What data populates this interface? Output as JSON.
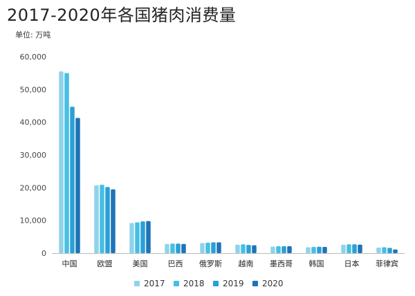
{
  "chart_data": {
    "type": "bar",
    "title": "2017-2020年各国猪肉消费量",
    "unit_label": "单位: 万吨",
    "categories": [
      "中国",
      "欧盟",
      "美国",
      "巴西",
      "俄罗斯",
      "越南",
      "墨西哥",
      "韩国",
      "日本",
      "菲律宾"
    ],
    "series": [
      {
        "name": "2017",
        "color": "#8fd3ea",
        "values": [
          55500,
          20700,
          9200,
          2800,
          3100,
          2600,
          2000,
          1800,
          2600,
          1700
        ]
      },
      {
        "name": "2018",
        "color": "#47bfe4",
        "values": [
          55000,
          20900,
          9400,
          2900,
          3200,
          2700,
          2100,
          1900,
          2700,
          1800
        ]
      },
      {
        "name": "2019",
        "color": "#2aa0d6",
        "values": [
          44700,
          20200,
          9700,
          2900,
          3300,
          2500,
          2100,
          1950,
          2700,
          1600
        ]
      },
      {
        "name": "2020",
        "color": "#1f73b7",
        "values": [
          41300,
          19500,
          9800,
          2800,
          3300,
          2400,
          2100,
          1900,
          2600,
          1100
        ]
      }
    ],
    "ylim": [
      0,
      60000
    ],
    "yticks": [
      "0",
      "10,000",
      "20,000",
      "30,000",
      "40,000",
      "50,000",
      "60,000"
    ],
    "grid": false,
    "legend_position": "bottom"
  }
}
